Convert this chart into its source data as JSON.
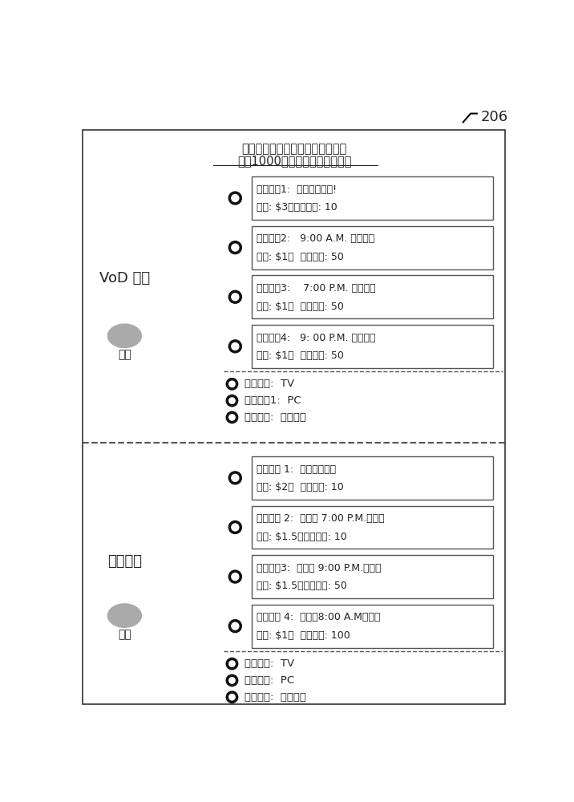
{
  "title_line1": "提交您的预订时间并赢取免费电影",
  "title_line2": "累积1000积分赢取一部免费电影",
  "figure_number": "206",
  "section1_label": "VoD 用户",
  "section1_submit": "提交",
  "section2_label": "下载用户",
  "section2_submit": "提交",
  "vod_boxes": [
    {
      "line1": "预订时间1:  现在开始播放!",
      "line2": "价格: $3，用户积分: 10"
    },
    {
      "line1": "预订时间2:   9:00 A.M. 开始播放",
      "line2": "价格: $1，  用户积分: 50"
    },
    {
      "line1": "预订时间3:    7:00 P.M. 开始播放",
      "line2": "价格: $1，  用户积分: 50"
    },
    {
      "line1": "预订时间4:   9: 00 P.M. 开始播放",
      "line2": "价格: $1，  用户积分: 50"
    }
  ],
  "vod_terminals": [
    "播放终端:  TV",
    "播放终端1:  PC",
    "播放终端:  移动电话"
  ],
  "dl_boxes": [
    {
      "line1": "预订时间 1:  现在开始下载",
      "line2": "价格: $2，  用户积分: 10"
    },
    {
      "line1": "预订时间 2:  在今晚 7:00 P.M.前完成",
      "line2": "价格: $1.5，用户积分: 10"
    },
    {
      "line1": "预订时间3:  在今晚 9:00 P.M.前完成",
      "line2": "价格: $1.5，用户积分: 50"
    },
    {
      "line1": "预订时间 4:  在明晨8:00 A.M前完成",
      "line2": "价格: $1，  用户积分: 100"
    }
  ],
  "dl_terminals": [
    "下载终端:  TV",
    "下载终端:  PC",
    "下载终端:  移动电话"
  ],
  "bg_color": "#ffffff",
  "box_color": "#ffffff",
  "box_edge_color": "#555555",
  "text_color": "#222222",
  "dash_color": "#555555",
  "circle_color": "#111111",
  "ellipse_color": "#aaaaaa"
}
